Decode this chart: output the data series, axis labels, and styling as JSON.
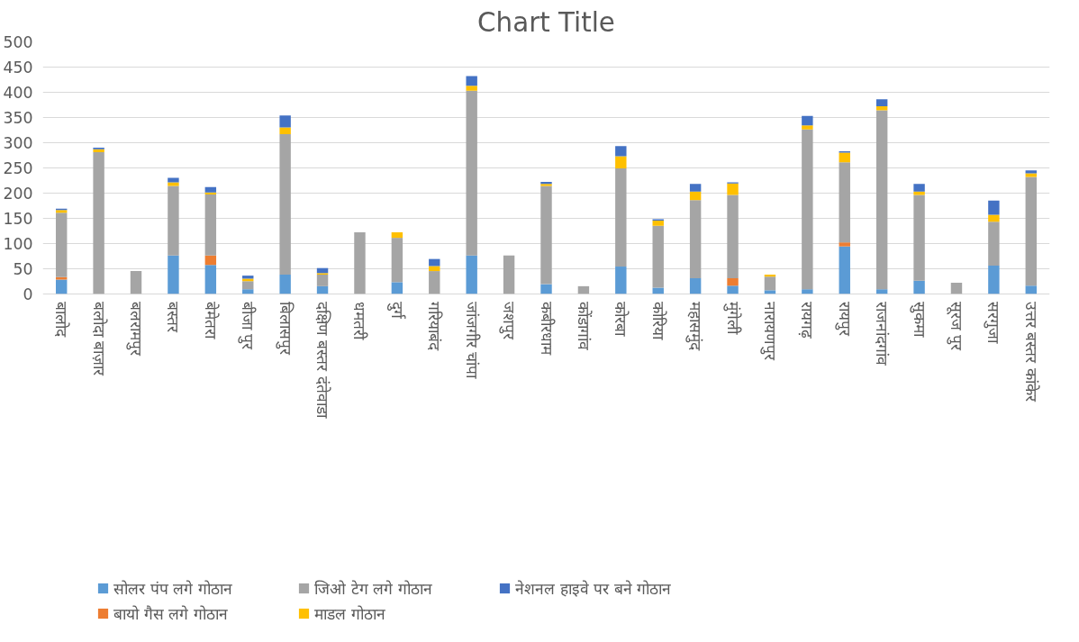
{
  "chart_data": {
    "type": "bar",
    "title": "Chart Title",
    "stacked": true,
    "categories": [
      "बालोद",
      "बलोदा बाज़ार",
      "बलरामपुर",
      "बस्तर",
      "बेमेतरा",
      "बीजा पुर",
      "बिलासपुर",
      "दक्षिण बस्तर दंतेवाडा",
      "धमतरी",
      "दुर्ग",
      "गरियाबंद",
      "जांजगीर चांपा",
      "जशपुर",
      "कबीरधाम",
      "कोंडागांव",
      "कोरबा",
      "कोरिया",
      "महासमुंद",
      "मुंगेली",
      "नारायणपुर",
      "रायगढ़",
      "रायपुर",
      "राजनांदगांव",
      "सुकमा",
      "सूरज पुर",
      "सरगुजा",
      "उत्तर बस्तर कांकेर"
    ],
    "series": [
      {
        "name": "सोलर पंप लगे गोठान",
        "color": "#5b9bd5",
        "values": [
          28,
          0,
          0,
          76,
          57,
          9,
          38,
          15,
          0,
          23,
          0,
          76,
          0,
          19,
          0,
          54,
          12,
          31,
          16,
          7,
          9,
          94,
          9,
          26,
          0,
          56,
          16
        ]
      },
      {
        "name": "बायो गैस लगे गोठान",
        "color": "#ed7d31",
        "values": [
          5,
          0,
          0,
          0,
          19,
          0,
          0,
          0,
          0,
          0,
          0,
          0,
          0,
          0,
          0,
          0,
          0,
          0,
          15,
          0,
          0,
          8,
          0,
          0,
          0,
          0,
          0
        ]
      },
      {
        "name": "जिओ टेग लगे गोठान",
        "color": "#a5a5a5",
        "values": [
          128,
          281,
          45,
          138,
          121,
          16,
          279,
          23,
          122,
          88,
          45,
          327,
          76,
          195,
          15,
          195,
          123,
          155,
          165,
          27,
          317,
          159,
          355,
          170,
          22,
          87,
          216
        ]
      },
      {
        "name": "माडल गोठान",
        "color": "#ffc000",
        "values": [
          5,
          6,
          0,
          7,
          4,
          5,
          13,
          3,
          0,
          11,
          10,
          10,
          0,
          4,
          0,
          24,
          10,
          17,
          23,
          4,
          8,
          19,
          8,
          7,
          0,
          14,
          7
        ]
      },
      {
        "name": "नेशनल हाइवे पर बने गोठान",
        "color": "#4472c4",
        "values": [
          3,
          3,
          0,
          9,
          11,
          6,
          24,
          10,
          0,
          0,
          14,
          19,
          0,
          4,
          0,
          20,
          3,
          15,
          2,
          0,
          19,
          3,
          14,
          15,
          0,
          28,
          6
        ]
      }
    ],
    "ylim": [
      0,
      500
    ],
    "yticks": [
      0,
      50,
      100,
      150,
      200,
      250,
      300,
      350,
      400,
      450,
      500
    ],
    "grid": "y",
    "legend": "bottom"
  }
}
